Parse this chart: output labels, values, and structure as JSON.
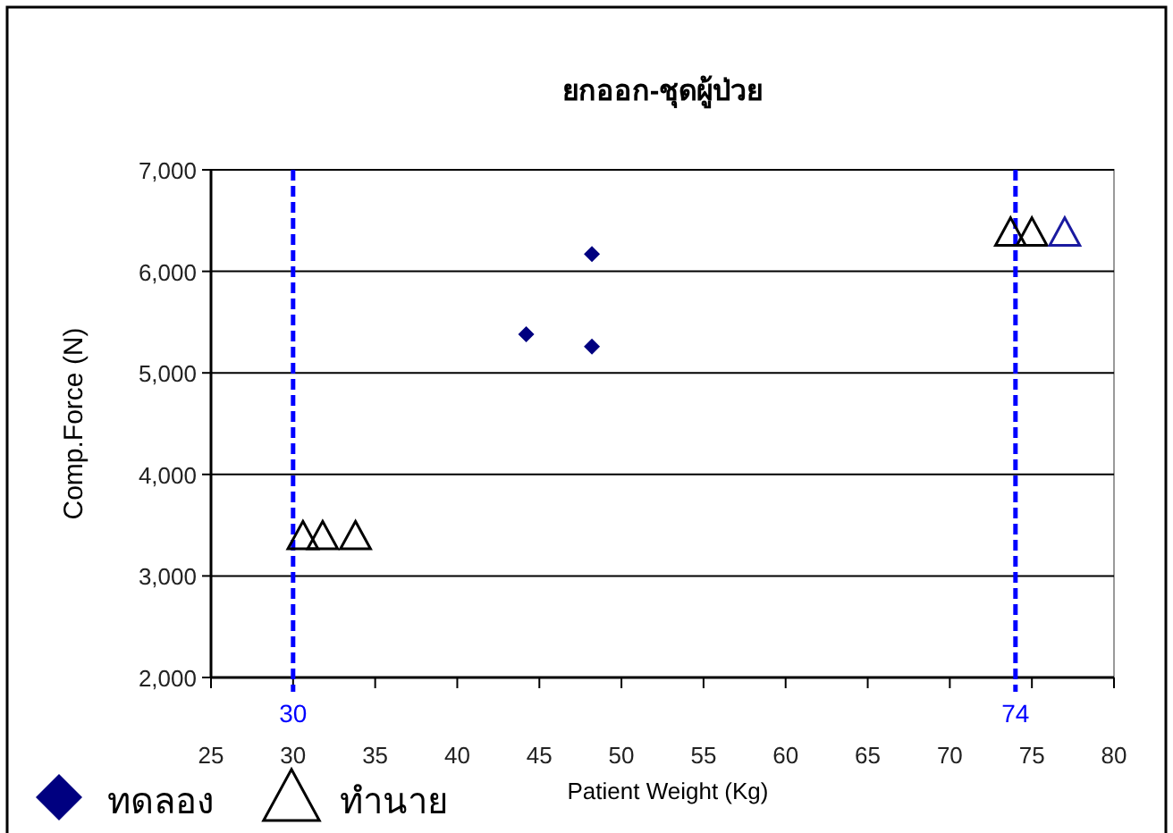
{
  "chart_data": {
    "type": "scatter",
    "title": "ยกออก-ชุดผู้ป่วย",
    "xlabel": "Patient Weight (Kg)",
    "ylabel": "Comp.Force (N)",
    "series": [
      {
        "name": "ทดลอง",
        "color": "#000080",
        "marker": "diamond",
        "x": [
          44.2,
          48.2,
          48.2
        ],
        "values": [
          5380,
          6170,
          5260
        ]
      },
      {
        "name": "ทำนาย",
        "color": "#000000",
        "marker": "triangle",
        "x": [
          30.6,
          31.8,
          33.8,
          73.7,
          75.0
        ],
        "values": [
          3390,
          3390,
          3390,
          6380,
          6380
        ]
      },
      {
        "color": "#1a1aa0",
        "marker": "triangle",
        "x": [
          77.0
        ],
        "values": [
          6380
        ]
      }
    ],
    "xlim": [
      25,
      80
    ],
    "xticks": [
      25,
      30,
      35,
      40,
      45,
      50,
      55,
      60,
      65,
      70,
      75,
      80
    ],
    "ylim": [
      2000,
      7000
    ],
    "yticks": [
      {
        "value": 2000,
        "label": "2,000"
      },
      {
        "value": 3000,
        "label": "3,000"
      },
      {
        "value": 4000,
        "label": "4,000"
      },
      {
        "value": 5000,
        "label": "5,000"
      },
      {
        "value": 6000,
        "label": "6,000"
      },
      {
        "value": 7000,
        "label": "7,000"
      }
    ],
    "grid": "y",
    "legend": "bottom left",
    "ref_lines": [
      {
        "axis": "x",
        "value": 30,
        "label": "30",
        "color": "#0000ff",
        "line_style": "dashed"
      },
      {
        "axis": "x",
        "value": 74,
        "label": "74",
        "color": "#0000ff",
        "line_style": "dashed"
      }
    ]
  }
}
